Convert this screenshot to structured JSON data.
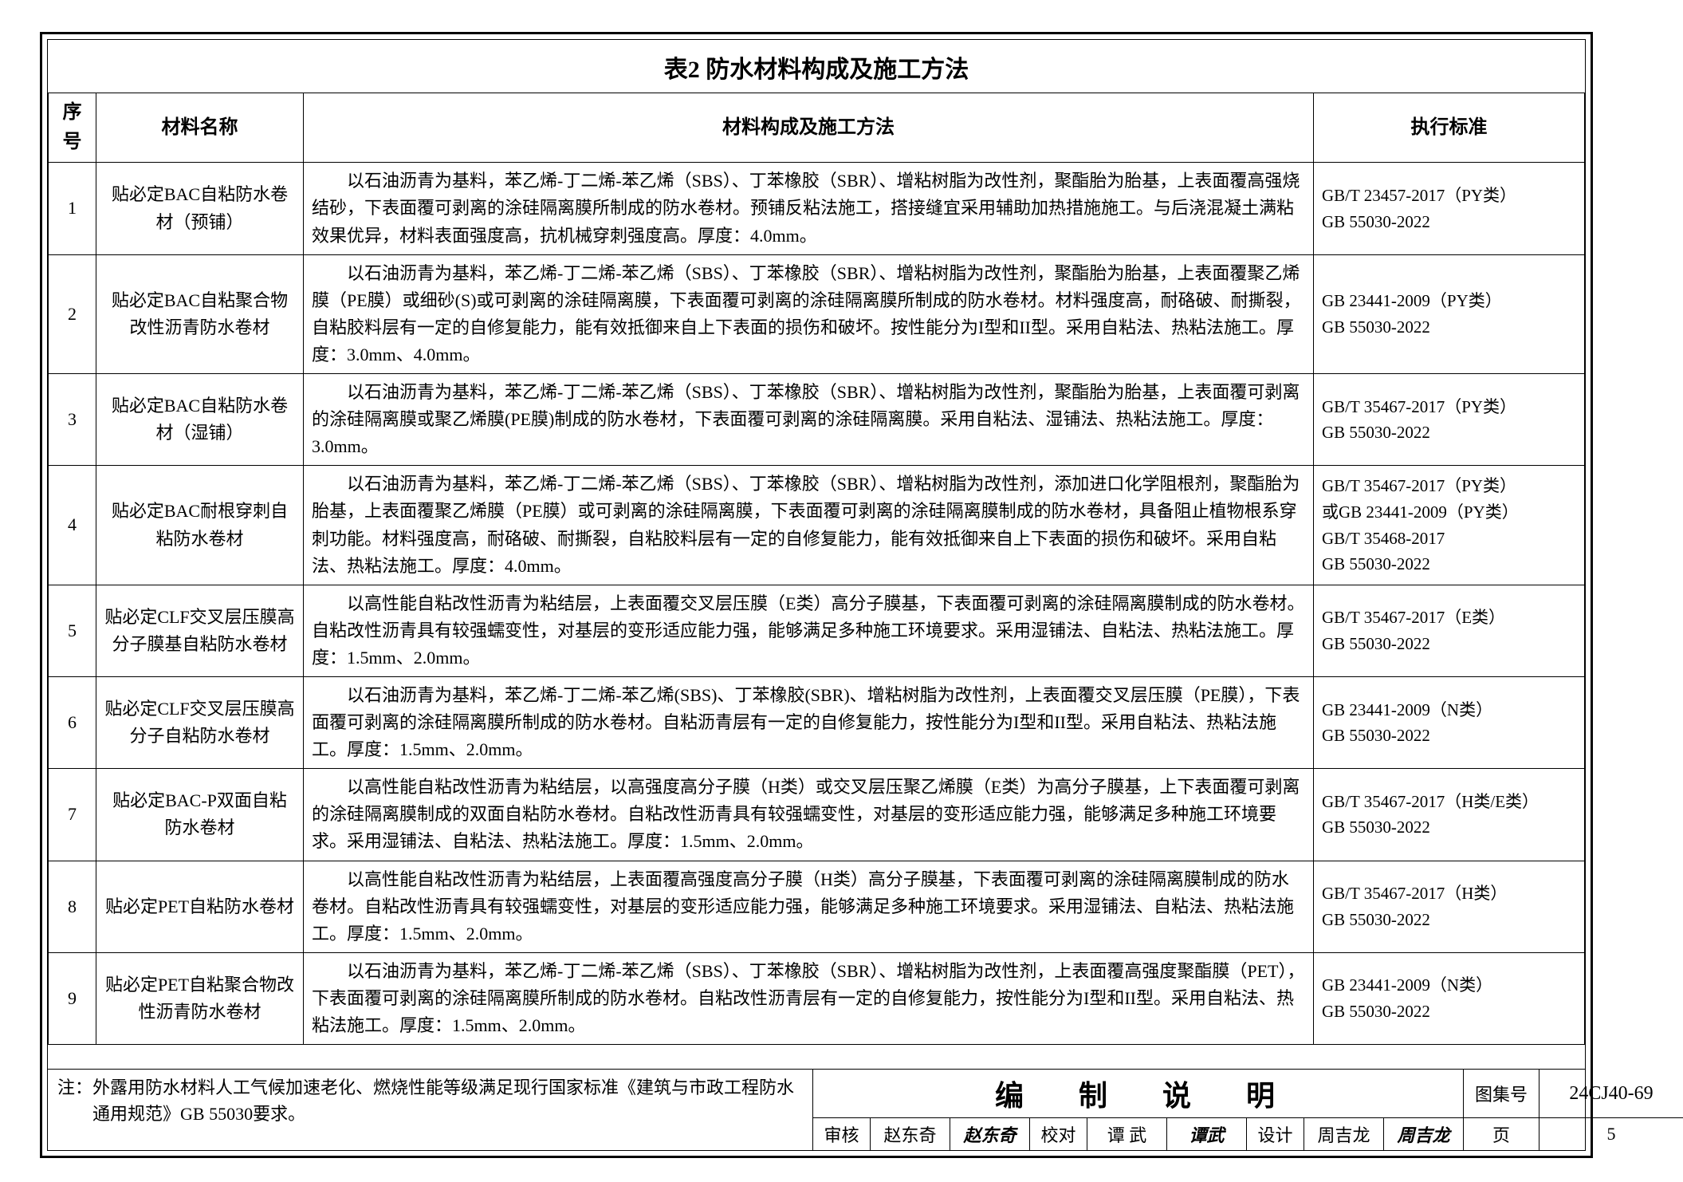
{
  "table_title": "表2 防水材料构成及施工方法",
  "headers": {
    "seq": "序号",
    "name": "材料名称",
    "desc": "材料构成及施工方法",
    "std": "执行标准"
  },
  "rows": [
    {
      "seq": "1",
      "name": "贴必定BAC自粘防水卷材（预铺）",
      "desc": "以石油沥青为基料，苯乙烯-丁二烯-苯乙烯（SBS）、丁苯橡胶（SBR）、增粘树脂为改性剂，聚酯胎为胎基，上表面覆高强烧结砂，下表面覆可剥离的涂硅隔离膜所制成的防水卷材。预铺反粘法施工，搭接缝宜采用辅助加热措施施工。与后浇混凝土满粘效果优异，材料表面强度高，抗机械穿刺强度高。厚度：4.0mm。",
      "std": "GB/T 23457-2017（PY类）\nGB 55030-2022"
    },
    {
      "seq": "2",
      "name": "贴必定BAC自粘聚合物改性沥青防水卷材",
      "desc": "以石油沥青为基料，苯乙烯-丁二烯-苯乙烯（SBS）、丁苯橡胶（SBR）、增粘树脂为改性剂，聚酯胎为胎基，上表面覆聚乙烯膜（PE膜）或细砂(S)或可剥离的涂硅隔离膜，下表面覆可剥离的涂硅隔离膜所制成的防水卷材。材料强度高，耐硌破、耐撕裂，自粘胶料层有一定的自修复能力，能有效抵御来自上下表面的损伤和破坏。按性能分为I型和II型。采用自粘法、热粘法施工。厚度：3.0mm、4.0mm。",
      "std": "GB 23441-2009（PY类）\nGB 55030-2022"
    },
    {
      "seq": "3",
      "name": "贴必定BAC自粘防水卷材（湿铺）",
      "desc": "以石油沥青为基料，苯乙烯-丁二烯-苯乙烯（SBS）、丁苯橡胶（SBR）、增粘树脂为改性剂，聚酯胎为胎基，上表面覆可剥离的涂硅隔离膜或聚乙烯膜(PE膜)制成的防水卷材，下表面覆可剥离的涂硅隔离膜。采用自粘法、湿铺法、热粘法施工。厚度：3.0mm。",
      "std": "GB/T 35467-2017（PY类）\nGB 55030-2022"
    },
    {
      "seq": "4",
      "name": "贴必定BAC耐根穿刺自粘防水卷材",
      "desc": "以石油沥青为基料，苯乙烯-丁二烯-苯乙烯（SBS）、丁苯橡胶（SBR）、增粘树脂为改性剂，添加进口化学阻根剂，聚酯胎为胎基，上表面覆聚乙烯膜（PE膜）或可剥离的涂硅隔离膜，下表面覆可剥离的涂硅隔离膜制成的防水卷材，具备阻止植物根系穿刺功能。材料强度高，耐硌破、耐撕裂，自粘胶料层有一定的自修复能力，能有效抵御来自上下表面的损伤和破坏。采用自粘法、热粘法施工。厚度：4.0mm。",
      "std": "GB/T 35467-2017（PY类）\n或GB 23441-2009（PY类）\nGB/T 35468-2017\nGB 55030-2022"
    },
    {
      "seq": "5",
      "name": "贴必定CLF交叉层压膜高分子膜基自粘防水卷材",
      "desc": "以高性能自粘改性沥青为粘结层，上表面覆交叉层压膜（E类）高分子膜基，下表面覆可剥离的涂硅隔离膜制成的防水卷材。自粘改性沥青具有较强蠕变性，对基层的变形适应能力强，能够满足多种施工环境要求。采用湿铺法、自粘法、热粘法施工。厚度：1.5mm、2.0mm。",
      "std": "GB/T 35467-2017（E类）\nGB 55030-2022"
    },
    {
      "seq": "6",
      "name": "贴必定CLF交叉层压膜高分子自粘防水卷材",
      "desc": "以石油沥青为基料，苯乙烯-丁二烯-苯乙烯(SBS)、丁苯橡胶(SBR)、增粘树脂为改性剂，上表面覆交叉层压膜（PE膜），下表面覆可剥离的涂硅隔离膜所制成的防水卷材。自粘沥青层有一定的自修复能力，按性能分为I型和II型。采用自粘法、热粘法施工。厚度：1.5mm、2.0mm。",
      "std": "GB 23441-2009（N类）\nGB 55030-2022"
    },
    {
      "seq": "7",
      "name": "贴必定BAC-P双面自粘防水卷材",
      "desc": "以高性能自粘改性沥青为粘结层，以高强度高分子膜（H类）或交叉层压聚乙烯膜（E类）为高分子膜基，上下表面覆可剥离的涂硅隔离膜制成的双面自粘防水卷材。自粘改性沥青具有较强蠕变性，对基层的变形适应能力强，能够满足多种施工环境要求。采用湿铺法、自粘法、热粘法施工。厚度：1.5mm、2.0mm。",
      "std": "GB/T 35467-2017（H类/E类）\nGB 55030-2022"
    },
    {
      "seq": "8",
      "name": "贴必定PET自粘防水卷材",
      "desc": "以高性能自粘改性沥青为粘结层，上表面覆高强度高分子膜（H类）高分子膜基，下表面覆可剥离的涂硅隔离膜制成的防水卷材。自粘改性沥青具有较强蠕变性，对基层的变形适应能力强，能够满足多种施工环境要求。采用湿铺法、自粘法、热粘法施工。厚度：1.5mm、2.0mm。",
      "std": "GB/T 35467-2017（H类）\nGB 55030-2022"
    },
    {
      "seq": "9",
      "name": "贴必定PET自粘聚合物改性沥青防水卷材",
      "desc": "以石油沥青为基料，苯乙烯-丁二烯-苯乙烯（SBS）、丁苯橡胶（SBR）、增粘树脂为改性剂，上表面覆高强度聚酯膜（PET），下表面覆可剥离的涂硅隔离膜所制成的防水卷材。自粘改性沥青层有一定的自修复能力，按性能分为I型和II型。采用自粘法、热粘法施工。厚度：1.5mm、2.0mm。",
      "std": "GB 23441-2009（N类）\nGB 55030-2022"
    }
  ],
  "note_label": "注：",
  "note_text": "外露用防水材料人工气候加速老化、燃烧性能等级满足现行国家标准《建筑与市政工程防水通用规范》GB 55030要求。",
  "title_block": {
    "doc_title": "编 制 说 明",
    "code_label": "图集号",
    "code_value": "24CJ40-69",
    "review_label": "审核",
    "review_name": "赵东奇",
    "review_sign": "赵东奇",
    "check_label": "校对",
    "check_name": "谭 武",
    "check_sign": "谭武",
    "design_label": "设计",
    "design_name": "周吉龙",
    "design_sign": "周吉龙",
    "page_label": "页",
    "page_num": "5"
  }
}
